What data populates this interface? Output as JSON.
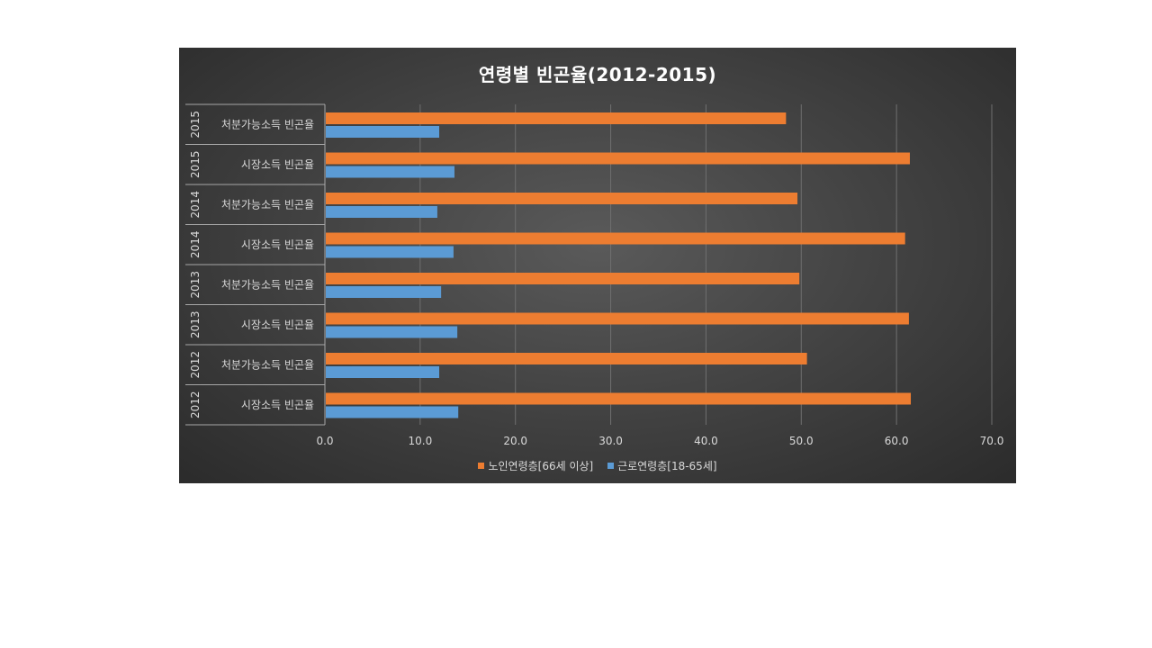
{
  "chart_data": {
    "type": "bar",
    "orientation": "horizontal",
    "title": "연령별 빈곤율(2012-2015)",
    "categories": [
      {
        "year": "2015",
        "label": "처분가능소득 빈곤율"
      },
      {
        "year": "2015",
        "label": "시장소득 빈곤율"
      },
      {
        "year": "2014",
        "label": "처분가능소득 빈곤율"
      },
      {
        "year": "2014",
        "label": "시장소득 빈곤율"
      },
      {
        "year": "2013",
        "label": "처분가능소득 빈곤율"
      },
      {
        "year": "2013",
        "label": "시장소득 빈곤율"
      },
      {
        "year": "2012",
        "label": "처분가능소득 빈곤율"
      },
      {
        "year": "2012",
        "label": "시장소득 빈곤율"
      }
    ],
    "series": [
      {
        "name": "노인연령층[66세 이상]",
        "color": "#ed7d31",
        "values": [
          48.4,
          61.4,
          49.6,
          60.9,
          49.8,
          61.3,
          50.6,
          61.5
        ]
      },
      {
        "name": "근로연령층[18-65세]",
        "color": "#5b9bd5",
        "values": [
          12.0,
          13.6,
          11.8,
          13.5,
          12.2,
          13.9,
          12.0,
          14.0
        ]
      }
    ],
    "xlim": [
      0,
      70
    ],
    "xticks": [
      "0.0",
      "10.0",
      "20.0",
      "30.0",
      "40.0",
      "50.0",
      "60.0",
      "70.0"
    ],
    "grid": true,
    "legend_position": "bottom"
  }
}
